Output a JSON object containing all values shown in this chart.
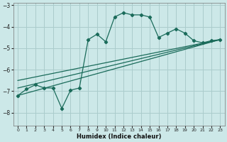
{
  "xlabel": "Humidex (Indice chaleur)",
  "bg_color": "#cce8e8",
  "grid_color": "#aacccc",
  "line_color": "#1a6b5a",
  "xlim": [
    -0.5,
    23.5
  ],
  "ylim": [
    -8.6,
    -2.9
  ],
  "xticks": [
    0,
    1,
    2,
    3,
    4,
    5,
    6,
    7,
    8,
    9,
    10,
    11,
    12,
    13,
    14,
    15,
    16,
    17,
    18,
    19,
    20,
    21,
    22,
    23
  ],
  "yticks": [
    -8,
    -7,
    -6,
    -5,
    -4,
    -3
  ],
  "line1_x": [
    0,
    1,
    2,
    3,
    4,
    5,
    6,
    7,
    8,
    9,
    10,
    11,
    12,
    13,
    14,
    15,
    16,
    17,
    18,
    19,
    20,
    21,
    22,
    23
  ],
  "line1_y": [
    -7.2,
    -6.9,
    -6.7,
    -6.85,
    -6.85,
    -7.8,
    -6.95,
    -6.85,
    -4.6,
    -4.35,
    -4.7,
    -3.55,
    -3.35,
    -3.45,
    -3.45,
    -3.55,
    -4.5,
    -4.3,
    -4.1,
    -4.3,
    -4.65,
    -4.75,
    -4.65,
    -4.6
  ],
  "line2_x": [
    0,
    23
  ],
  "line2_y": [
    -7.2,
    -4.6
  ],
  "line3_x": [
    0,
    23
  ],
  "line3_y": [
    -6.85,
    -4.6
  ],
  "line4_x": [
    0,
    23
  ],
  "line4_y": [
    -6.5,
    -4.6
  ]
}
